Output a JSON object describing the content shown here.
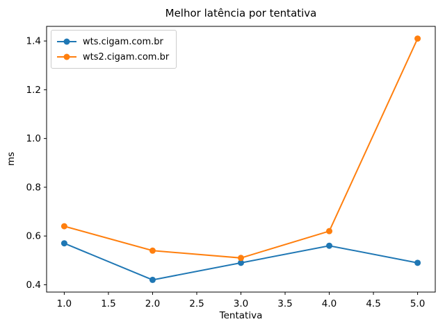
{
  "chart_data": {
    "type": "line",
    "title": "Melhor latência por tentativa",
    "xlabel": "Tentativa",
    "ylabel": "ms",
    "x": [
      1,
      2,
      3,
      4,
      5
    ],
    "series": [
      {
        "name": "wts.cigam.com.br",
        "color": "#1f77b4",
        "values": [
          0.57,
          0.42,
          0.49,
          0.56,
          0.49
        ]
      },
      {
        "name": "wts2.cigam.com.br",
        "color": "#ff7f0e",
        "values": [
          0.64,
          0.54,
          0.51,
          0.62,
          1.41
        ]
      }
    ],
    "xlim": [
      0.8,
      5.2
    ],
    "ylim": [
      0.37,
      1.46
    ],
    "xticks": [
      1.0,
      1.5,
      2.0,
      2.5,
      3.0,
      3.5,
      4.0,
      4.5,
      5.0
    ],
    "yticks": [
      0.4,
      0.6,
      0.8,
      1.0,
      1.2,
      1.4
    ],
    "grid": false,
    "legend_position": "upper-left",
    "marker": "circle",
    "line_width": 2,
    "marker_radius": 4.5
  }
}
